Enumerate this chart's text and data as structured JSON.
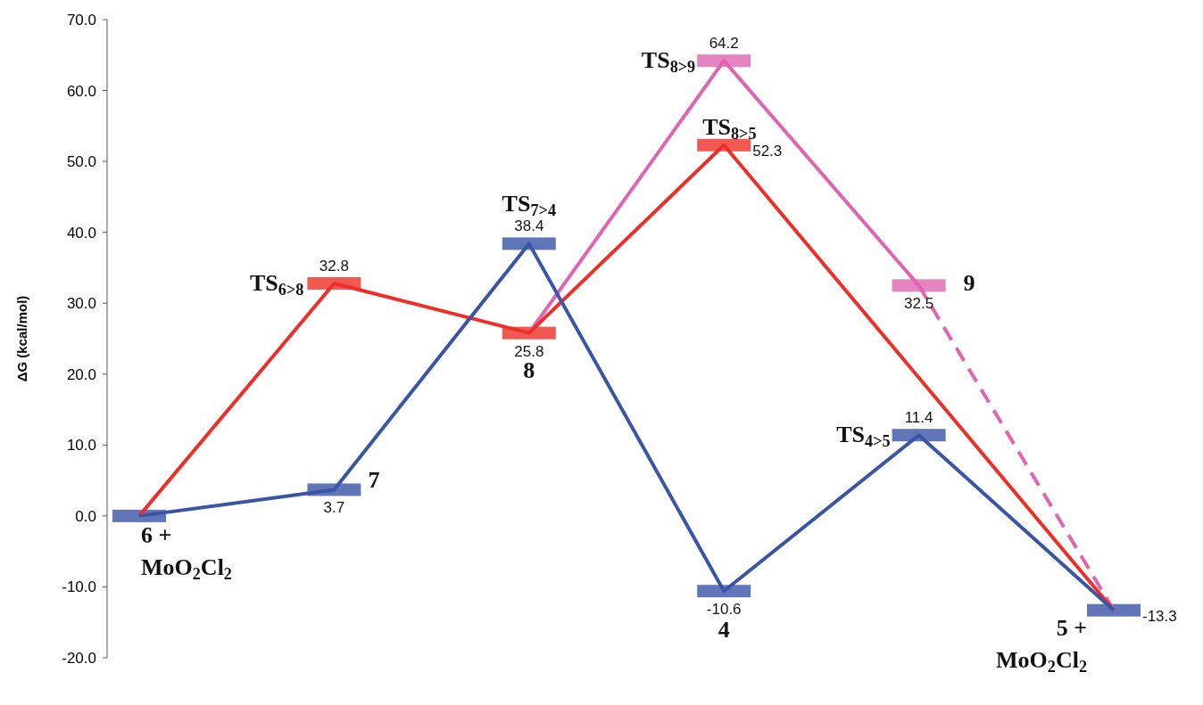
{
  "chart_data": {
    "type": "line",
    "ylabel": "ΔG (kcal/mol)",
    "categories": [
      null,
      null,
      null,
      null,
      null,
      null
    ],
    "ylim": [
      -20,
      70
    ],
    "yticks": [
      {
        "value": -20,
        "label": "-20.0"
      },
      {
        "value": -10,
        "label": "-10.0"
      },
      {
        "value": 0,
        "label": "0.0"
      },
      {
        "value": 10,
        "label": "10.0"
      },
      {
        "value": 20,
        "label": "20.0"
      },
      {
        "value": 30,
        "label": "30.0"
      },
      {
        "value": 40,
        "label": "40.0"
      },
      {
        "value": 50,
        "label": "50.0"
      },
      {
        "value": 60,
        "label": "60.0"
      },
      {
        "value": 70,
        "label": "70.0"
      }
    ],
    "tick_labels": "y",
    "grid": false,
    "line_style": "solid",
    "series": [
      {
        "color": "#3a54a6",
        "values": [
          0,
          3.7,
          38.4,
          -10.6,
          11.4,
          -13.3
        ],
        "value_labels": [
          null,
          "3.7",
          "38.4",
          "-10.6",
          "11.4",
          "-13.3"
        ]
      },
      {
        "color": "#ee2e27",
        "values": [
          0,
          32.8,
          25.8,
          52.3,
          null,
          -13.3
        ],
        "value_labels": [
          null,
          "32.8",
          "25.8",
          "52.3",
          null,
          null
        ]
      },
      {
        "color": "#e064b2",
        "values": [
          null,
          null,
          25.8,
          64.2,
          32.5,
          null
        ],
        "value_labels": [
          null,
          null,
          null,
          "64.2",
          "32.5",
          null
        ]
      },
      {
        "color": "#e064b2",
        "values": [
          null,
          null,
          null,
          null,
          32.5,
          -13.3
        ],
        "line_style": "dashed"
      }
    ],
    "annotations": [
      "6 + MoO$_{2}$Cl$_{2}$",
      "7",
      "TS$_{6>8}$",
      "TS$_{7>4}$",
      "8",
      "TS$_{8>9}$",
      "TS$_{8>5}$",
      "4",
      "9",
      "TS$_{4>5}$",
      "5 + MoO$_{2}$Cl$_{2}$"
    ]
  }
}
